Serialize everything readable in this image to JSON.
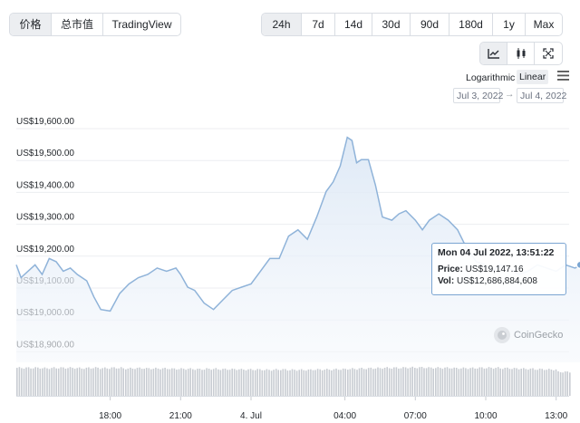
{
  "view_tabs": [
    {
      "label": "价格",
      "active": true
    },
    {
      "label": "总市值",
      "active": false
    },
    {
      "label": "TradingView",
      "active": false
    }
  ],
  "range_tabs": [
    {
      "label": "24h",
      "active": true
    },
    {
      "label": "7d",
      "active": false
    },
    {
      "label": "14d",
      "active": false
    },
    {
      "label": "30d",
      "active": false
    },
    {
      "label": "90d",
      "active": false
    },
    {
      "label": "180d",
      "active": false
    },
    {
      "label": "1y",
      "active": false
    },
    {
      "label": "Max",
      "active": false
    }
  ],
  "chart_type_icons": [
    "line-chart-icon",
    "candlestick-icon",
    "fullscreen-icon"
  ],
  "scale": {
    "logarithmic_label": "Logarithmic",
    "linear_label": "Linear",
    "active": "Linear"
  },
  "date_range": {
    "from": "Jul 3, 2022",
    "to": "Jul 4, 2022"
  },
  "tooltip": {
    "title": "Mon 04 Jul 2022, 13:51:22",
    "price_label": "Price:",
    "price_value": "US$19,147.16",
    "vol_label": "Vol:",
    "vol_value": "US$12,686,884,608"
  },
  "watermark": "CoinGecko",
  "colors": {
    "line": "#8fb3d9",
    "fill_top": "#dbe7f5",
    "fill_bottom": "#f5f8fc",
    "volume": "#c8ccd2",
    "grid": "#eceef1",
    "marker": "#7aa5d2"
  },
  "chart_data": {
    "type": "area",
    "title": "",
    "xlabel": "",
    "ylabel": "",
    "y_tick_labels": [
      "US$18,900.00",
      "US$19,000.00",
      "US$19,100.00",
      "US$19,200.00",
      "US$19,300.00",
      "US$19,400.00",
      "US$19,500.00",
      "US$19,600.00"
    ],
    "y_ticks": [
      18900,
      19000,
      19100,
      19200,
      19300,
      19400,
      19500,
      19600
    ],
    "ylim": [
      18880,
      19620
    ],
    "x_tick_labels": [
      "18:00",
      "21:00",
      "4. Jul",
      "04:00",
      "07:00",
      "10:00",
      "13:00"
    ],
    "x_ticks": [
      18,
      21,
      24,
      28,
      31,
      34,
      37
    ],
    "xlim": [
      14,
      38.1
    ],
    "grid": true,
    "legend": "none",
    "series": [
      {
        "x": [
          14,
          14.2,
          14.5,
          14.8,
          15.1,
          15.4,
          15.7,
          16,
          16.3,
          16.6,
          17,
          17.3,
          17.6,
          18,
          18.4,
          18.8,
          19.2,
          19.6,
          20,
          20.4,
          20.8,
          21,
          21.3,
          21.6,
          22,
          22.4,
          22.8,
          23.2,
          23.6,
          24,
          24.4,
          24.8,
          25.2,
          25.6,
          26,
          26.4,
          26.8,
          27.2,
          27.5,
          27.8,
          28,
          28.1,
          28.3,
          28.5,
          28.7,
          29,
          29.3,
          29.6,
          30,
          30.3,
          30.6,
          31,
          31.3,
          31.6,
          32,
          32.4,
          32.8,
          33.2,
          33.6,
          34,
          34.3,
          34.6,
          35,
          35.4,
          35.8,
          36.2,
          36.6,
          37,
          37.4,
          37.8,
          38.1
        ],
        "y": [
          19150,
          19110,
          19130,
          19150,
          19120,
          19170,
          19160,
          19130,
          19140,
          19120,
          19100,
          19050,
          19010,
          19005,
          19060,
          19090,
          19110,
          19120,
          19140,
          19130,
          19140,
          19120,
          19080,
          19070,
          19030,
          19010,
          19040,
          19070,
          19080,
          19090,
          19130,
          19170,
          19170,
          19240,
          19260,
          19230,
          19300,
          19380,
          19410,
          19460,
          19520,
          19550,
          19540,
          19470,
          19480,
          19480,
          19400,
          19300,
          19290,
          19310,
          19320,
          19290,
          19260,
          19290,
          19310,
          19290,
          19260,
          19200,
          19160,
          19150,
          19130,
          19150,
          19140,
          19120,
          19130,
          19150,
          19140,
          19130,
          19150,
          19140,
          19150
        ]
      }
    ],
    "volume": {
      "baseline_note": "",
      "values": [
        0.82,
        0.82,
        0.81,
        0.82,
        0.82,
        0.81,
        0.82,
        0.81,
        0.82,
        0.8,
        0.81,
        0.8,
        0.8,
        0.79,
        0.79,
        0.78,
        0.79,
        0.78,
        0.78,
        0.77,
        0.77,
        0.76,
        0.77,
        0.76,
        0.76,
        0.77,
        0.77,
        0.78,
        0.79,
        0.8,
        0.81,
        0.82,
        0.82,
        0.83,
        0.83,
        0.82,
        0.82,
        0.81,
        0.81,
        0.82,
        0.82,
        0.81,
        0.8,
        0.79,
        0.78,
        0.77,
        0.7
      ]
    }
  }
}
